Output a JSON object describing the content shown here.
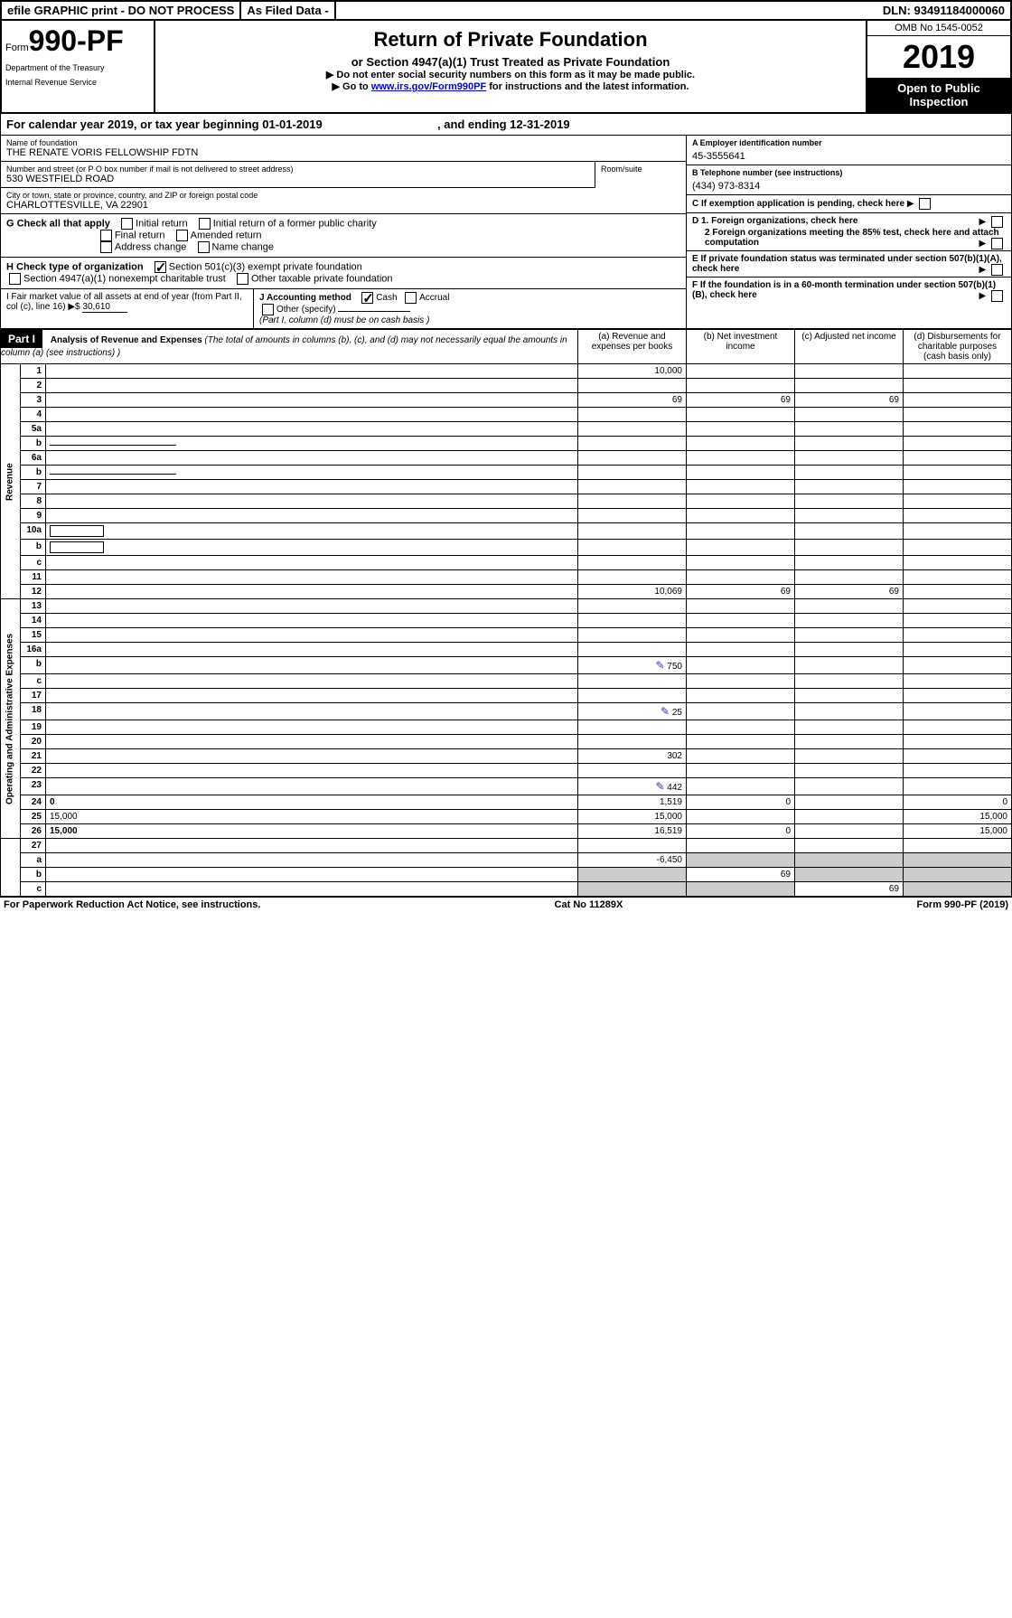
{
  "top": {
    "efile": "efile GRAPHIC print - DO NOT PROCESS",
    "asfiled": "As Filed Data -",
    "dln_label": "DLN:",
    "dln": "93491184000060"
  },
  "header": {
    "form_prefix": "Form",
    "form_no": "990-PF",
    "dept1": "Department of the Treasury",
    "dept2": "Internal Revenue Service",
    "title": "Return of Private Foundation",
    "subtitle": "or Section 4947(a)(1) Trust Treated as Private Foundation",
    "note1": "▶ Do not enter social security numbers on this form as it may be made public.",
    "note2_pre": "▶ Go to ",
    "note2_link": "www.irs.gov/Form990PF",
    "note2_post": " for instructions and the latest information.",
    "omb": "OMB No 1545-0052",
    "year": "2019",
    "open": "Open to Public Inspection"
  },
  "cal": {
    "text_pre": "For calendar year 2019, or tax year beginning ",
    "begin": "01-01-2019",
    "mid": ", and ending ",
    "end": "12-31-2019"
  },
  "info": {
    "name_lbl": "Name of foundation",
    "name": "THE RENATE VORIS FELLOWSHIP FDTN",
    "ein_lbl": "A Employer identification number",
    "ein": "45-3555641",
    "addr_lbl": "Number and street (or P O  box number if mail is not delivered to street address)",
    "addr": "530 WESTFIELD ROAD",
    "room_lbl": "Room/suite",
    "tel_lbl": "B Telephone number (see instructions)",
    "tel": "(434) 973-8314",
    "city_lbl": "City or town, state or province, country, and ZIP or foreign postal code",
    "city": "CHARLOTTESVILLE, VA  22901",
    "c_lbl": "C If exemption application is pending, check here",
    "g_lbl": "G Check all that apply",
    "g_opts": [
      "Initial return",
      "Initial return of a former public charity",
      "Final return",
      "Amended return",
      "Address change",
      "Name change"
    ],
    "d1": "D 1. Foreign organizations, check here",
    "d2": "2 Foreign organizations meeting the 85% test, check here and attach computation",
    "e": "E If private foundation status was terminated under section 507(b)(1)(A), check here",
    "h_lbl": "H Check type of organization",
    "h_opt1": "Section 501(c)(3) exempt private foundation",
    "h_opt2": "Section 4947(a)(1) nonexempt charitable trust",
    "h_opt3": "Other taxable private foundation",
    "i_lbl": "I Fair market value of all assets at end of year (from Part II, col  (c), line 16) ▶$ ",
    "i_val": "30,610",
    "j_lbl": "J Accounting method",
    "j_cash": "Cash",
    "j_accrual": "Accrual",
    "j_other": "Other (specify)",
    "j_note": "(Part I, column (d) must be on cash basis )",
    "f": "F If the foundation is in a 60-month termination under section 507(b)(1)(B), check here"
  },
  "part1": {
    "label": "Part I",
    "title": "Analysis of Revenue and Expenses",
    "title_note": "(The total of amounts in columns (b), (c), and (d) may not necessarily equal the amounts in column (a) (see instructions) )",
    "col_a": "(a) Revenue and expenses per books",
    "col_b": "(b) Net investment income",
    "col_c": "(c) Adjusted net income",
    "col_d": "(d) Disbursements for charitable purposes (cash basis only)",
    "revenue_label": "Revenue",
    "expenses_label": "Operating and Administrative Expenses"
  },
  "rows": [
    {
      "n": "1",
      "d": "",
      "a": "10,000",
      "b": "",
      "c": "",
      "da": true,
      "db": true,
      "dc": true
    },
    {
      "n": "2",
      "d": "",
      "a": "",
      "b": "",
      "c": "",
      "da": false,
      "db": true,
      "dc": true
    },
    {
      "n": "3",
      "d": "",
      "a": "69",
      "b": "69",
      "c": "69"
    },
    {
      "n": "4",
      "d": "",
      "a": "",
      "b": "",
      "c": ""
    },
    {
      "n": "5a",
      "d": "",
      "a": "",
      "b": "",
      "c": ""
    },
    {
      "n": "b",
      "d": "",
      "a": "",
      "b": "",
      "c": "",
      "line": true
    },
    {
      "n": "6a",
      "d": "",
      "a": "",
      "b": "",
      "c": ""
    },
    {
      "n": "b",
      "d": "",
      "a": "",
      "b": "",
      "c": "",
      "line": true
    },
    {
      "n": "7",
      "d": "",
      "a": "",
      "b": "",
      "c": ""
    },
    {
      "n": "8",
      "d": "",
      "a": "",
      "b": "",
      "c": ""
    },
    {
      "n": "9",
      "d": "",
      "a": "",
      "b": "",
      "c": ""
    },
    {
      "n": "10a",
      "d": "",
      "a": "",
      "b": "",
      "c": "",
      "box": true
    },
    {
      "n": "b",
      "d": "",
      "a": "",
      "b": "",
      "c": "",
      "box": true
    },
    {
      "n": "c",
      "d": "",
      "a": "",
      "b": "",
      "c": ""
    },
    {
      "n": "11",
      "d": "",
      "a": "",
      "b": "",
      "c": ""
    },
    {
      "n": "12",
      "d": "",
      "a": "10,069",
      "b": "69",
      "c": "69",
      "bold": true
    }
  ],
  "exp_rows": [
    {
      "n": "13",
      "d": "",
      "a": "",
      "b": "",
      "c": ""
    },
    {
      "n": "14",
      "d": "",
      "a": "",
      "b": "",
      "c": ""
    },
    {
      "n": "15",
      "d": "",
      "a": "",
      "b": "",
      "c": ""
    },
    {
      "n": "16a",
      "d": "",
      "a": "",
      "b": "",
      "c": ""
    },
    {
      "n": "b",
      "d": "",
      "a": "750",
      "b": "",
      "c": "",
      "icon": true
    },
    {
      "n": "c",
      "d": "",
      "a": "",
      "b": "",
      "c": ""
    },
    {
      "n": "17",
      "d": "",
      "a": "",
      "b": "",
      "c": ""
    },
    {
      "n": "18",
      "d": "",
      "a": "25",
      "b": "",
      "c": "",
      "icon": true
    },
    {
      "n": "19",
      "d": "",
      "a": "",
      "b": "",
      "c": ""
    },
    {
      "n": "20",
      "d": "",
      "a": "",
      "b": "",
      "c": ""
    },
    {
      "n": "21",
      "d": "",
      "a": "302",
      "b": "",
      "c": ""
    },
    {
      "n": "22",
      "d": "",
      "a": "",
      "b": "",
      "c": ""
    },
    {
      "n": "23",
      "d": "",
      "a": "442",
      "b": "",
      "c": "",
      "icon": true
    },
    {
      "n": "24",
      "d": "0",
      "a": "1,519",
      "b": "0",
      "c": "",
      "bold": true
    },
    {
      "n": "25",
      "d": "15,000",
      "a": "15,000",
      "b": "",
      "c": ""
    },
    {
      "n": "26",
      "d": "15,000",
      "a": "16,519",
      "b": "0",
      "c": "",
      "bold": true
    }
  ],
  "final_rows": [
    {
      "n": "27",
      "d": "",
      "a": "",
      "b": "",
      "c": ""
    },
    {
      "n": "a",
      "d": "",
      "a": "-6,450",
      "b": "",
      "c": "",
      "bold": true,
      "gb": true,
      "gc": true,
      "gd": true
    },
    {
      "n": "b",
      "d": "",
      "a": "",
      "b": "69",
      "c": "",
      "bold": true,
      "ga": true,
      "gc": true,
      "gd": true
    },
    {
      "n": "c",
      "d": "",
      "a": "",
      "b": "",
      "c": "69",
      "bold": true,
      "ga": true,
      "gb": true,
      "gd": true
    }
  ],
  "footer": {
    "left": "For Paperwork Reduction Act Notice, see instructions.",
    "mid": "Cat  No  11289X",
    "right": "Form 990-PF (2019)"
  }
}
